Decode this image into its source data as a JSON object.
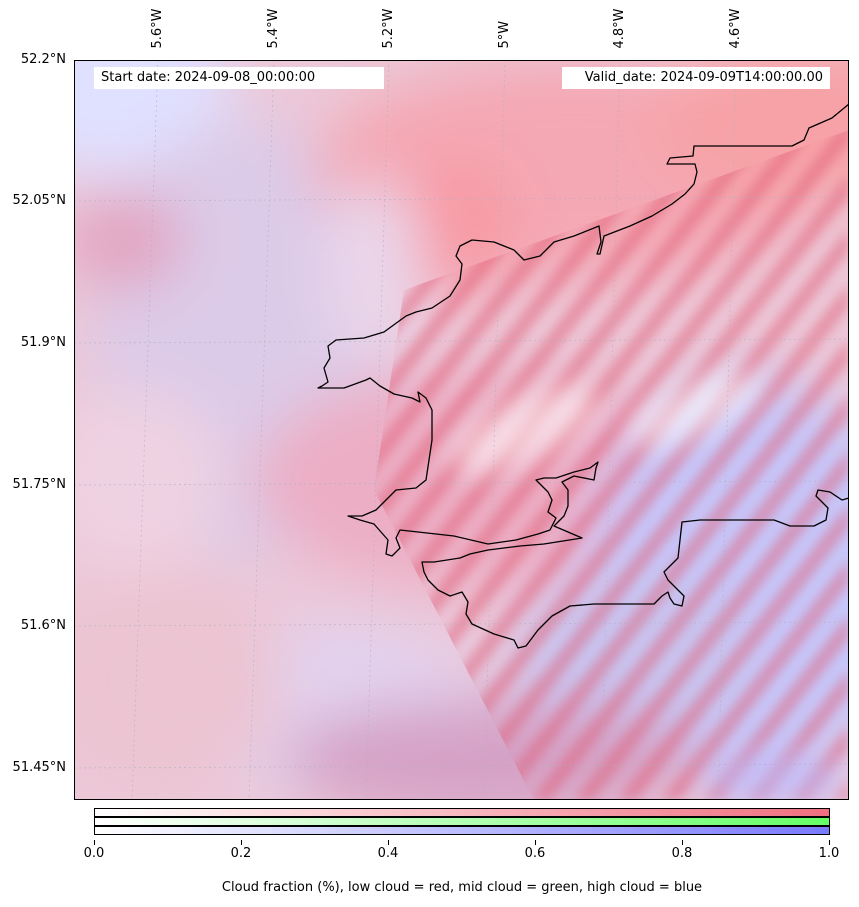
{
  "header": {
    "start_date": "Start date: 2024-09-08_00:00:00",
    "valid_date": "Valid_date: 2024-09-09T14:00:00.00"
  },
  "map": {
    "longitude_labels": [
      "5.6°W",
      "5.4°W",
      "5.2°W",
      "5°W",
      "4.8°W",
      "4.6°W"
    ],
    "latitude_labels": [
      "52.2°N",
      "52.05°N",
      "51.9°N",
      "51.75°N",
      "51.6°N",
      "51.45°N"
    ],
    "field_colors": {
      "low_cloud": "#f4a0a8",
      "mid_cloud": "#66ff66",
      "high_cloud": "#c8c8ff",
      "coastline": "#000000"
    }
  },
  "colorbar": {
    "tick_labels": [
      "0.0",
      "0.2",
      "0.4",
      "0.6",
      "0.8",
      "1.0"
    ],
    "caption": "Cloud fraction (%), low cloud = red, mid cloud = green, high cloud = blue",
    "low_color": "#f07080",
    "mid_color": "#66ff66",
    "high_color": "#7a7aff"
  }
}
